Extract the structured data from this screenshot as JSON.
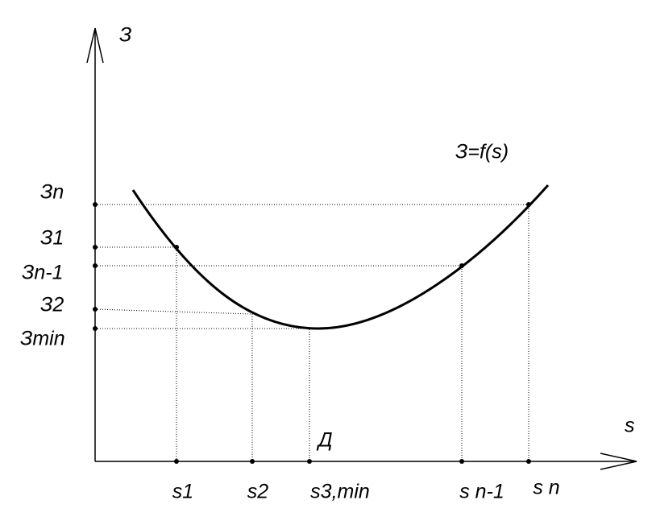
{
  "axes": {
    "y_label": "З",
    "x_label": "s"
  },
  "curve_label": "З=f(s)",
  "point_label": "Д",
  "y_labels": [
    "Зn",
    "З1",
    "Зn-1",
    "З2",
    "Зmin"
  ],
  "x_labels": [
    "s1",
    "s2",
    "s3,min",
    "s n-1",
    "s n"
  ]
}
